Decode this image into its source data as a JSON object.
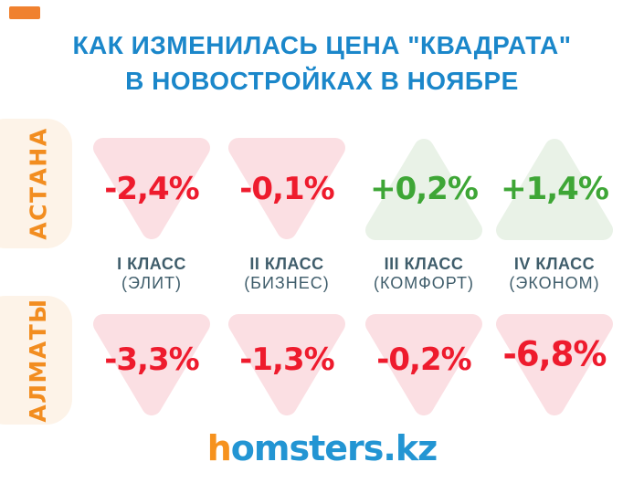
{
  "title": {
    "line1": "КАК ИЗМЕНИЛАСЬ ЦЕНА \"КВАДРАТА\"",
    "line2": "В НОВОСТРОЙКАХ В НОЯБРЕ"
  },
  "categories": [
    {
      "klass": "I КЛАСС",
      "type": "(ЭЛИТ)"
    },
    {
      "klass": "II КЛАСС",
      "type": "(БИЗНЕС)"
    },
    {
      "klass": "III КЛАСС",
      "type": "(КОМФОРТ)"
    },
    {
      "klass": "IV КЛАСС",
      "type": "(ЭКОНОМ)"
    }
  ],
  "rows": [
    {
      "city": "АСТАНА",
      "cells": [
        {
          "label": "-2,4%",
          "direction": "down",
          "trend": "negative"
        },
        {
          "label": "-0,1%",
          "direction": "down",
          "trend": "negative"
        },
        {
          "label": "+0,2%",
          "direction": "up",
          "trend": "positive"
        },
        {
          "label": "+1,4%",
          "direction": "up",
          "trend": "positive"
        }
      ]
    },
    {
      "city": "АЛМАТЫ",
      "cells": [
        {
          "label": "-3,3%",
          "direction": "down",
          "trend": "negative"
        },
        {
          "label": "-1,3%",
          "direction": "down",
          "trend": "negative"
        },
        {
          "label": "-0,2%",
          "direction": "down",
          "trend": "negative"
        },
        {
          "label": "-6,8%",
          "direction": "down",
          "trend": "negative"
        }
      ]
    }
  ],
  "logo": {
    "accent": "h",
    "rest": "omsters.kz"
  },
  "colors": {
    "title_blue": "#1B87CA",
    "negative_red": "#EE1B2D",
    "negative_triangle": "#FBDFE3",
    "positive_green": "#3EA636",
    "positive_triangle": "#E9F2E7",
    "city_orange": "#F28D20",
    "city_pill_bg": "#FDF3E8",
    "category_slate": "#3F5D6B",
    "logo_blue": "#2395D3",
    "logo_orange": "#F6921E",
    "corner_accent": "#F0812F"
  },
  "chart_data": {
    "type": "table",
    "title": "КАК ИЗМЕНИЛАСЬ ЦЕНА \"КВАДРАТА\" В НОВОСТРОЙКАХ В НОЯБРЕ",
    "unit": "%",
    "categories": [
      "I КЛАСС (ЭЛИТ)",
      "II КЛАСС (БИЗНЕС)",
      "III КЛАСС (КОМФОРТ)",
      "IV КЛАСС (ЭКОНОМ)"
    ],
    "series": [
      {
        "name": "АСТАНА",
        "values": [
          -2.4,
          -0.1,
          0.2,
          1.4
        ]
      },
      {
        "name": "АЛМАТЫ",
        "values": [
          -3.3,
          -1.3,
          -0.2,
          -6.8
        ]
      }
    ],
    "legend_position": "left-row-labels",
    "notes": "Down pink triangle = price decrease (red text), up green triangle = price increase (green text)"
  }
}
